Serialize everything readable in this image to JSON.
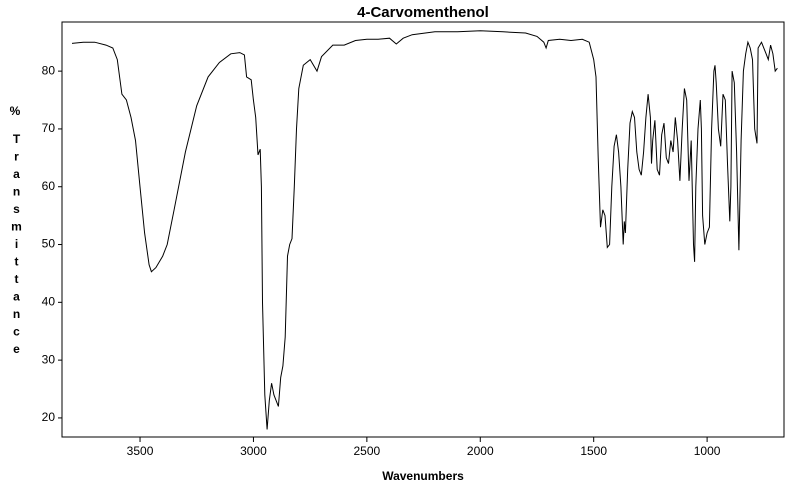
{
  "chart_data": {
    "type": "line",
    "title": "4-Carvomenthenol",
    "x_label": "Wavenumbers",
    "y_label_unit": "%",
    "y_label": "Transmittance",
    "xlim": [
      3844,
      661
    ],
    "ylim": [
      16.7,
      88.5
    ],
    "xticks": [
      3500,
      3000,
      2500,
      2000,
      1500,
      1000
    ],
    "yticks": [
      20,
      30,
      40,
      50,
      60,
      70,
      80
    ],
    "series": [
      {
        "color": "#000000",
        "x": [
          3800,
          3750,
          3700,
          3650,
          3620,
          3600,
          3580,
          3560,
          3540,
          3520,
          3500,
          3480,
          3460,
          3450,
          3430,
          3400,
          3380,
          3350,
          3300,
          3250,
          3200,
          3150,
          3100,
          3060,
          3040,
          3030,
          3010,
          3000,
          2990,
          2980,
          2970,
          2965,
          2960,
          2950,
          2940,
          2930,
          2920,
          2910,
          2890,
          2880,
          2870,
          2860,
          2850,
          2840,
          2830,
          2820,
          2810,
          2800,
          2780,
          2750,
          2720,
          2700,
          2650,
          2600,
          2550,
          2500,
          2450,
          2400,
          2370,
          2340,
          2300,
          2200,
          2100,
          2000,
          1900,
          1800,
          1750,
          1720,
          1710,
          1700,
          1650,
          1600,
          1550,
          1520,
          1500,
          1490,
          1480,
          1470,
          1460,
          1450,
          1440,
          1430,
          1420,
          1410,
          1400,
          1390,
          1380,
          1370,
          1365,
          1360,
          1350,
          1340,
          1330,
          1320,
          1310,
          1300,
          1290,
          1280,
          1270,
          1260,
          1250,
          1245,
          1240,
          1230,
          1220,
          1210,
          1200,
          1190,
          1180,
          1170,
          1160,
          1150,
          1140,
          1130,
          1120,
          1110,
          1100,
          1090,
          1080,
          1070,
          1060,
          1055,
          1050,
          1040,
          1030,
          1025,
          1020,
          1010,
          1000,
          990,
          980,
          970,
          965,
          960,
          950,
          940,
          930,
          920,
          910,
          900,
          895,
          890,
          880,
          870,
          860,
          850,
          840,
          830,
          820,
          810,
          800,
          790,
          780,
          775,
          760,
          740,
          730,
          720,
          710,
          700,
          690
        ],
        "values": [
          84.8,
          85,
          85,
          84.5,
          84,
          82,
          76,
          75,
          72,
          68,
          60,
          52,
          46.5,
          45.3,
          46,
          48,
          50,
          56,
          66,
          74,
          79,
          81.5,
          83,
          83.2,
          82.8,
          79,
          78.5,
          75,
          72,
          65.5,
          66.5,
          60,
          40,
          24,
          18,
          23,
          26,
          24,
          22,
          27,
          29,
          34,
          48,
          50,
          51,
          60,
          70,
          77,
          81,
          82,
          80,
          82.5,
          84.5,
          84.5,
          85.3,
          85.5,
          85.5,
          85.7,
          84.7,
          85.7,
          86.3,
          86.8,
          86.8,
          87,
          86.8,
          86.6,
          86,
          85,
          84,
          85.3,
          85.5,
          85.3,
          85.5,
          85,
          82,
          79,
          65,
          53,
          56,
          55,
          49.5,
          50,
          60,
          67,
          69,
          66,
          60,
          50,
          54,
          52,
          63,
          71,
          73,
          72,
          66,
          63,
          62,
          66,
          72,
          76,
          72,
          64,
          68,
          71.5,
          63,
          62,
          69,
          71,
          65,
          64,
          68,
          66,
          72,
          68,
          61,
          70,
          77,
          75,
          61,
          68,
          50,
          47,
          60,
          70,
          75,
          70,
          55,
          50,
          52,
          53,
          70,
          80,
          81,
          78,
          70,
          67,
          76,
          75,
          64,
          54,
          60,
          80,
          78,
          66,
          49,
          68,
          80,
          83,
          85,
          84,
          82,
          70,
          67.5,
          84,
          85,
          83,
          82,
          84.5,
          83,
          80,
          80.5
        ]
      }
    ]
  }
}
